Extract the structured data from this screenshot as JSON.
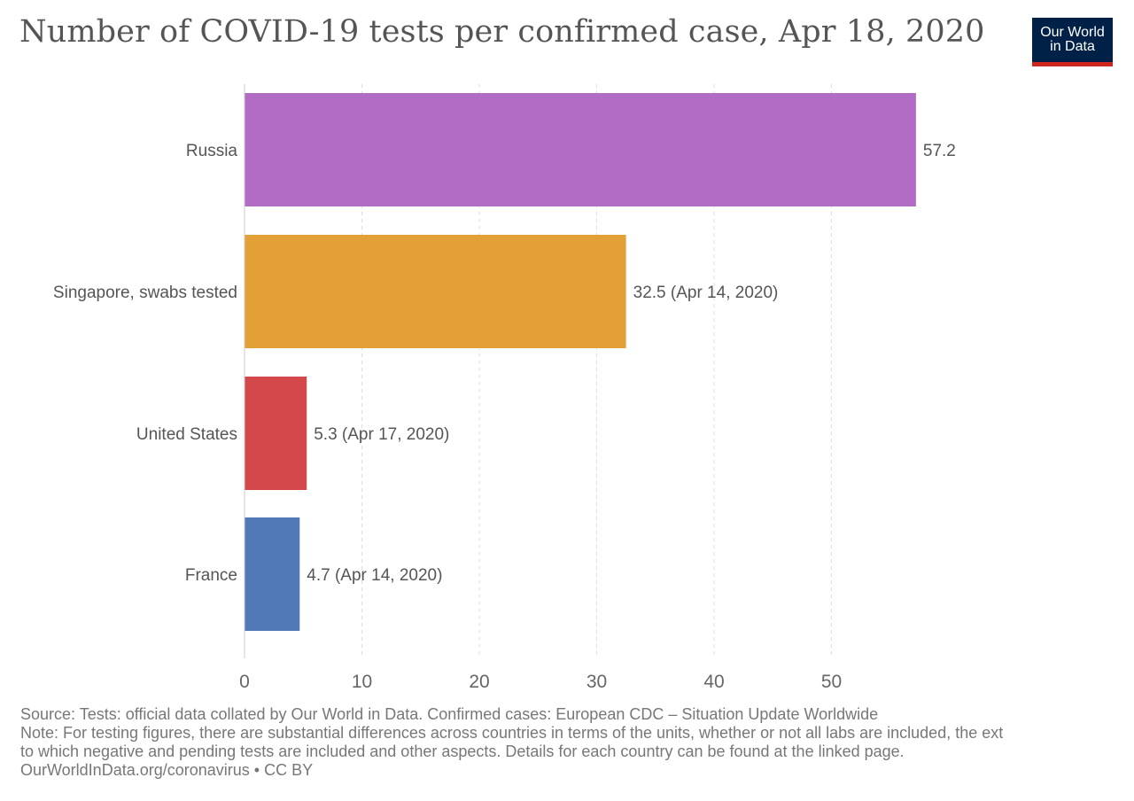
{
  "title": "Number of COVID-19 tests per confirmed case, Apr 18, 2020",
  "logo": {
    "line1": "Our World",
    "line2": "in Data",
    "bg_color": "#002147",
    "accent_color": "#ce261e"
  },
  "chart_data": {
    "type": "bar",
    "orientation": "horizontal",
    "title": "Number of COVID-19 tests per confirmed case, Apr 18, 2020",
    "categories": [
      "Russia",
      "Singapore, swabs tested",
      "United States",
      "France"
    ],
    "values": [
      57.2,
      32.5,
      5.3,
      4.7
    ],
    "value_labels": [
      "57.2",
      "32.5 (Apr 14, 2020)",
      "5.3 (Apr 17, 2020)",
      "4.7 (Apr 14, 2020)"
    ],
    "colors": [
      "#b16cc4",
      "#e2a037",
      "#d4474a",
      "#5279b7"
    ],
    "x_ticks": [
      0,
      10,
      20,
      30,
      40,
      50
    ],
    "xlim": [
      0,
      57.2
    ],
    "xlabel": "",
    "ylabel": "",
    "grid": "vertical-dashed",
    "legend": "none"
  },
  "footer": {
    "source": "Source: Tests: official data collated by Our World in Data. Confirmed cases: European CDC – Situation Update Worldwide",
    "note_line1": "Note: For testing figures, there are substantial differences across countries in terms of the units, whether or not all labs are included, the ext",
    "note_line2": "to which negative and pending tests are included and other aspects. Details for each country can be found at the linked page.",
    "url_line": "OurWorldInData.org/coronavirus • CC BY"
  }
}
